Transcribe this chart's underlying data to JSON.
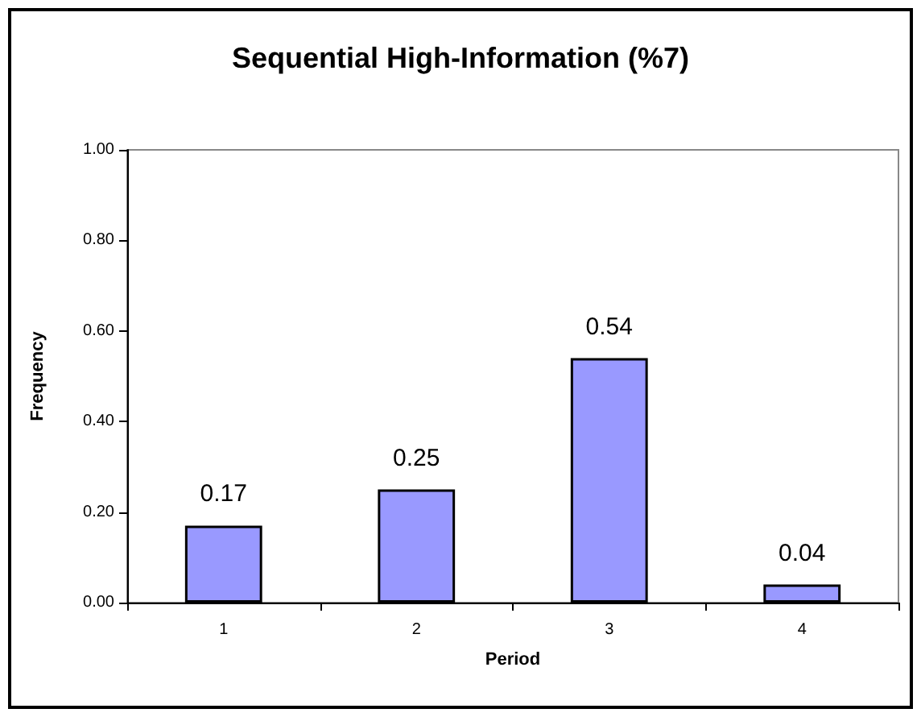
{
  "chart_data": {
    "type": "bar",
    "title": "Sequential High-Information (%7)",
    "xlabel": "Period",
    "ylabel": "Frequency",
    "categories": [
      "1",
      "2",
      "3",
      "4"
    ],
    "values": [
      0.17,
      0.25,
      0.54,
      0.04
    ],
    "color": "#9999ff",
    "ylim": [
      0,
      1
    ],
    "yticks": [
      {
        "value": 0,
        "label": "0.00"
      },
      {
        "value": 0.2,
        "label": "0.20"
      },
      {
        "value": 0.4,
        "label": "0.40"
      },
      {
        "value": 0.6,
        "label": "0.60"
      },
      {
        "value": 0.8,
        "label": "0.80"
      },
      {
        "value": 1,
        "label": "1.00"
      }
    ],
    "data_labels": true,
    "grid": false
  }
}
